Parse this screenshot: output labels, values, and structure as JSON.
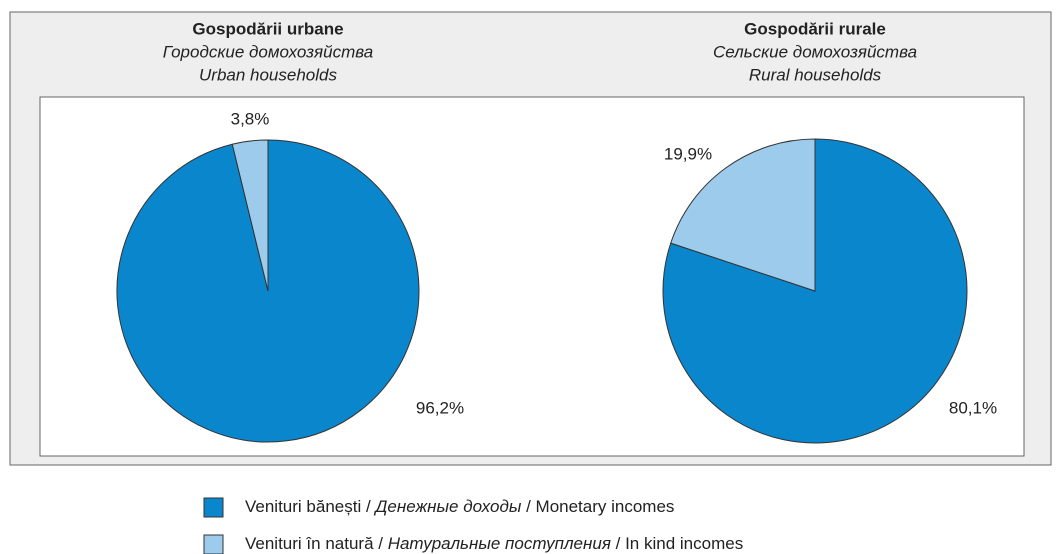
{
  "chart_data": [
    {
      "type": "pie",
      "title": "Gospodării urbane",
      "subtitle": "Городские домохозяйства",
      "subtitle_en": "Urban households",
      "categories": [
        "Venituri bănești",
        "Venituri în natură"
      ],
      "values": [
        96.2,
        3.8
      ],
      "value_labels": [
        "96,2%",
        "3,8%"
      ],
      "colors": [
        "#0a86cd",
        "#9ccbeb"
      ]
    },
    {
      "type": "pie",
      "title": "Gospodării rurale",
      "subtitle": "Сельские домохозяйства",
      "subtitle_en": "Rural households",
      "categories": [
        "Venituri bănești",
        "Venituri în natură"
      ],
      "values": [
        80.1,
        19.9
      ],
      "value_labels": [
        "80,1%",
        "19,9%"
      ],
      "colors": [
        "#0a86cd",
        "#9ccbeb"
      ]
    }
  ],
  "legend": {
    "items": [
      {
        "color": "#0a86cd",
        "parts": [
          "Venituri bănești / ",
          "Денежные доходы",
          " / Monetary incomes"
        ]
      },
      {
        "color": "#9ccbeb",
        "parts": [
          "Venituri în natură / ",
          "Натуральные поступления",
          " / In kind incomes"
        ]
      }
    ]
  }
}
